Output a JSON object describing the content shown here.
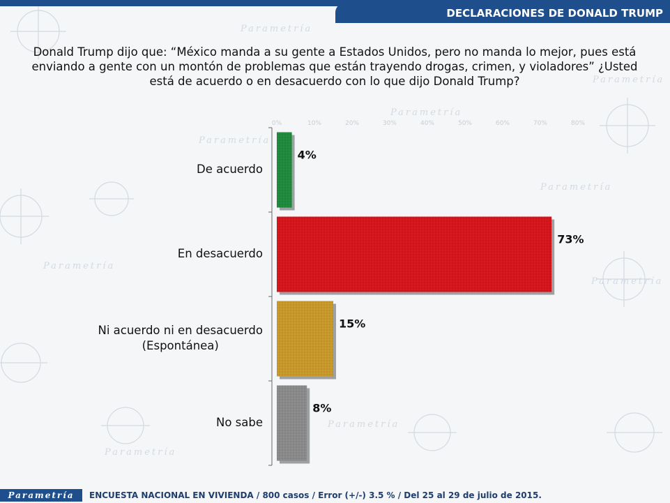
{
  "header": {
    "title": "DECLARACIONES DE DONALD TRUMP"
  },
  "question": {
    "text": "Donald Trump dijo que: “México manda a su gente a Estados Unidos, pero no manda lo mejor, pues está enviando a gente con un montón de problemas que están trayendo drogas, crimen, y violadores” ¿Usted está de acuerdo o en desacuerdo con lo que dijo Donald Trump?"
  },
  "chart_data": {
    "type": "bar",
    "orientation": "horizontal",
    "categories": [
      "De acuerdo",
      "En desacuerdo",
      "Ni acuerdo ni en desacuerdo (Espontánea)",
      "No sabe"
    ],
    "category_lines": [
      [
        "De acuerdo"
      ],
      [
        "En desacuerdo"
      ],
      [
        "Ni acuerdo ni en desacuerdo",
        "(Espontánea)"
      ],
      [
        "No sabe"
      ]
    ],
    "values": [
      4,
      73,
      15,
      8
    ],
    "value_labels": [
      "4%",
      "73%",
      "15%",
      "8%"
    ],
    "colors": [
      "#1e8a3c",
      "#d6141c",
      "#c9982a",
      "#8a8a8a"
    ],
    "xlim": [
      0,
      80
    ],
    "ticks": [
      0,
      10,
      20,
      30,
      40,
      50,
      60,
      70,
      80
    ],
    "tick_labels": [
      "0%",
      "10%",
      "20%",
      "30%",
      "40%",
      "50%",
      "60%",
      "70%",
      "80%"
    ],
    "grid": false,
    "legend": "none"
  },
  "footer": {
    "brand": "Parametría",
    "text": "ENCUESTA NACIONAL EN VIVIENDA / 800 casos / Error (+/-) 3.5 % / Del 25 al 29 de julio de 2015."
  },
  "watermark": {
    "brand": "Parametría"
  }
}
